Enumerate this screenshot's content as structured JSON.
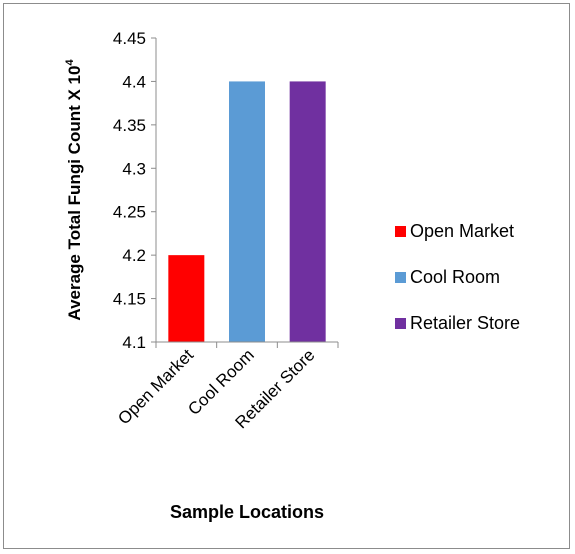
{
  "chart_data": {
    "type": "bar",
    "title": "",
    "xlabel": "Sample Locations",
    "ylabel": "Average Total Fungi Count X 10",
    "ylabel_superscript": "4",
    "categories": [
      "Open Market",
      "Cool Room",
      "Retailer Store"
    ],
    "values": [
      4.2,
      4.4,
      4.4
    ],
    "colors": [
      "#ff0000",
      "#5b9bd5",
      "#7030a0"
    ],
    "ylim": [
      4.1,
      4.45
    ],
    "yticks": [
      "4.1",
      "4.15",
      "4.2",
      "4.25",
      "4.3",
      "4.35",
      "4.4",
      "4.45"
    ],
    "grid": false,
    "legend_position": "right",
    "legend": [
      "Open Market",
      "Cool Room",
      "Retailer Store"
    ]
  }
}
